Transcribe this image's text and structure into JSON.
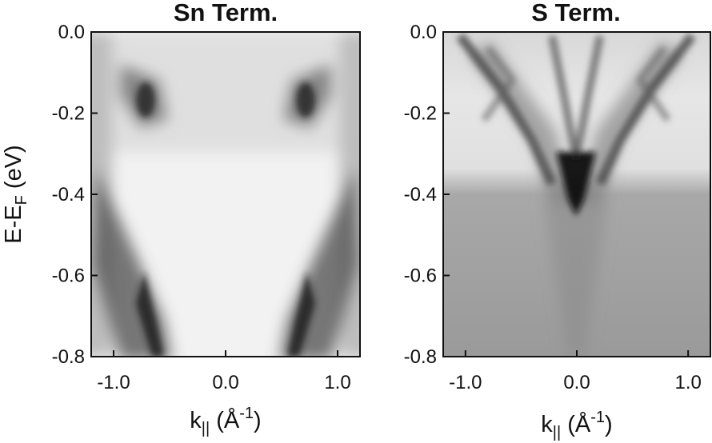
{
  "chart_data": [
    {
      "type": "heatmap",
      "title": "Sn Term.",
      "xlabel": {
        "base": "k",
        "sub": "||",
        "unit_open": " (Å",
        "sup": "-1",
        "unit_close": ")"
      },
      "ylabel": {
        "base": "E-E",
        "sub": "F",
        "unit": " (eV)"
      },
      "xlim": [
        -1.2,
        1.2
      ],
      "ylim": [
        -0.8,
        0.0
      ],
      "xticks": [
        -1.0,
        0.0,
        1.0
      ],
      "xtick_labels": [
        "-1.0",
        "0.0",
        "1.0"
      ],
      "yticks": [
        0.0,
        -0.2,
        -0.4,
        -0.6,
        -0.8
      ],
      "ytick_labels": [
        "0.0",
        "-0.2",
        "-0.4",
        "-0.6",
        "-0.8"
      ],
      "colormap": "grayscale (dark = high intensity)",
      "features": [
        {
          "name": "upper-left pocket",
          "points": [
            [
              -0.95,
              -0.02
            ],
            [
              -0.75,
              -0.12
            ],
            [
              -0.65,
              -0.2
            ],
            [
              -0.55,
              -0.25
            ]
          ]
        },
        {
          "name": "upper-right pocket",
          "points": [
            [
              0.95,
              -0.02
            ],
            [
              0.75,
              -0.12
            ],
            [
              0.65,
              -0.2
            ],
            [
              0.55,
              -0.25
            ]
          ]
        },
        {
          "name": "left lower band",
          "points": [
            [
              -1.0,
              -0.32
            ],
            [
              -0.85,
              -0.5
            ],
            [
              -0.75,
              -0.62
            ],
            [
              -0.62,
              -0.72
            ],
            [
              -0.55,
              -0.8
            ]
          ]
        },
        {
          "name": "right lower band",
          "points": [
            [
              1.0,
              -0.32
            ],
            [
              0.85,
              -0.5
            ],
            [
              0.75,
              -0.62
            ],
            [
              0.62,
              -0.72
            ],
            [
              0.55,
              -0.8
            ]
          ]
        }
      ]
    },
    {
      "type": "heatmap",
      "title": "S Term.",
      "xlabel": {
        "base": "k",
        "sub": "||",
        "unit_open": " (Å",
        "sup": "-1",
        "unit_close": ")"
      },
      "ylabel": null,
      "xlim": [
        -1.2,
        1.2
      ],
      "ylim": [
        -0.8,
        0.0
      ],
      "xticks": [
        -1.0,
        0.0,
        1.0
      ],
      "xtick_labels": [
        "-1.0",
        "0.0",
        "1.0"
      ],
      "yticks": [
        0.0,
        -0.2,
        -0.4,
        -0.6,
        -0.8
      ],
      "ytick_labels": [
        "0.0",
        "-0.2",
        "-0.4",
        "-0.6",
        "-0.8"
      ],
      "colormap": "grayscale (dark = high intensity)",
      "features": [
        {
          "name": "central cone",
          "points": [
            [
              -0.3,
              -0.25
            ],
            [
              0.0,
              -0.4
            ],
            [
              0.3,
              -0.25
            ]
          ]
        },
        {
          "name": "left V band",
          "points": [
            [
              -1.0,
              0.0
            ],
            [
              -0.7,
              -0.15
            ],
            [
              -0.45,
              -0.3
            ],
            [
              -0.3,
              -0.45
            ]
          ]
        },
        {
          "name": "right V band",
          "points": [
            [
              1.0,
              0.0
            ],
            [
              0.7,
              -0.15
            ],
            [
              0.45,
              -0.3
            ],
            [
              0.3,
              -0.45
            ]
          ]
        },
        {
          "name": "inner left band",
          "points": [
            [
              -0.35,
              0.0
            ],
            [
              -0.15,
              -0.15
            ],
            [
              0.0,
              -0.3
            ]
          ]
        },
        {
          "name": "inner right band",
          "points": [
            [
              0.35,
              0.0
            ],
            [
              0.15,
              -0.15
            ],
            [
              0.0,
              -0.3
            ]
          ]
        }
      ]
    }
  ]
}
